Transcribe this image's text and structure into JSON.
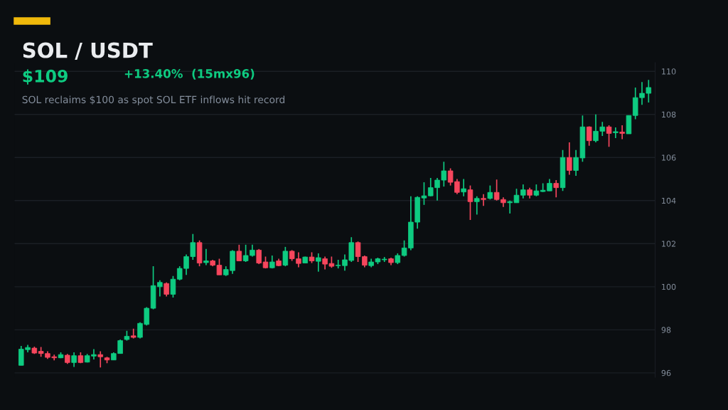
{
  "chart_data": {
    "type": "candlestick",
    "title": "SOL / USDT",
    "subtitle": "$109",
    "annotations": [
      "+13.40%  (15mx96)",
      "SOL reclaims $100 as spot SOL ETF inflows hit record"
    ],
    "categories": [
      null,
      null,
      null,
      null,
      null,
      null,
      null,
      null,
      null,
      null,
      null,
      null,
      null,
      null,
      null,
      null,
      null,
      null,
      null,
      null,
      null,
      null,
      null,
      null,
      null,
      null,
      null,
      null,
      null,
      null,
      null,
      null,
      null,
      null,
      null,
      null,
      null,
      null,
      null,
      null,
      null,
      null,
      null,
      null,
      null,
      null,
      null,
      null,
      null,
      null,
      null,
      null,
      null,
      null,
      null,
      null,
      null,
      null,
      null,
      null,
      null,
      null,
      null,
      null,
      null,
      null,
      null,
      null,
      null,
      null,
      null,
      null,
      null,
      null,
      null,
      null,
      null,
      null,
      null,
      null,
      null,
      null,
      null,
      null,
      null,
      null,
      null,
      null,
      null,
      null,
      null,
      null,
      null,
      null,
      null,
      null
    ],
    "ohlc": [
      [
        96.35,
        97.25,
        96.35,
        97.1
      ],
      [
        97.08,
        97.3,
        96.95,
        97.18
      ],
      [
        97.15,
        97.22,
        96.88,
        96.92
      ],
      [
        97.0,
        97.2,
        96.75,
        96.9
      ],
      [
        96.9,
        97.0,
        96.65,
        96.72
      ],
      [
        96.75,
        96.85,
        96.58,
        96.7
      ],
      [
        96.7,
        96.95,
        96.68,
        96.85
      ],
      [
        96.82,
        96.88,
        96.42,
        96.48
      ],
      [
        96.48,
        96.95,
        96.28,
        96.8
      ],
      [
        96.8,
        96.95,
        96.45,
        96.48
      ],
      [
        96.5,
        96.88,
        96.48,
        96.8
      ],
      [
        96.78,
        97.1,
        96.62,
        96.85
      ],
      [
        96.85,
        97.0,
        96.25,
        96.75
      ],
      [
        96.7,
        96.75,
        96.45,
        96.6
      ],
      [
        96.6,
        96.95,
        96.6,
        96.9
      ],
      [
        96.9,
        97.55,
        96.9,
        97.5
      ],
      [
        97.55,
        97.95,
        97.5,
        97.7
      ],
      [
        97.72,
        98.05,
        97.6,
        97.65
      ],
      [
        97.65,
        98.35,
        97.6,
        98.3
      ],
      [
        98.25,
        99.05,
        98.2,
        99.0
      ],
      [
        99.0,
        100.95,
        98.95,
        100.05
      ],
      [
        100.0,
        100.3,
        99.55,
        100.2
      ],
      [
        100.15,
        100.2,
        99.55,
        99.65
      ],
      [
        99.65,
        100.5,
        99.5,
        100.35
      ],
      [
        100.35,
        100.95,
        100.3,
        100.85
      ],
      [
        100.85,
        101.5,
        100.55,
        101.4
      ],
      [
        101.4,
        102.45,
        101.25,
        102.05
      ],
      [
        102.05,
        102.15,
        100.95,
        101.1
      ],
      [
        101.12,
        101.75,
        101.0,
        101.2
      ],
      [
        101.2,
        101.25,
        100.95,
        101.0
      ],
      [
        101.0,
        101.3,
        100.55,
        100.55
      ],
      [
        100.55,
        100.95,
        100.5,
        100.8
      ],
      [
        100.75,
        101.7,
        100.6,
        101.65
      ],
      [
        101.65,
        101.95,
        101.2,
        101.2
      ],
      [
        101.2,
        101.95,
        101.15,
        101.45
      ],
      [
        101.45,
        101.95,
        101.4,
        101.7
      ],
      [
        101.7,
        101.75,
        101.05,
        101.1
      ],
      [
        101.15,
        101.4,
        100.85,
        100.88
      ],
      [
        100.88,
        101.45,
        100.85,
        101.15
      ],
      [
        101.2,
        101.3,
        100.95,
        100.98
      ],
      [
        101.0,
        101.85,
        100.95,
        101.65
      ],
      [
        101.65,
        101.7,
        101.2,
        101.3
      ],
      [
        101.3,
        101.6,
        100.9,
        101.08
      ],
      [
        101.1,
        101.4,
        101.1,
        101.38
      ],
      [
        101.38,
        101.6,
        101.1,
        101.2
      ],
      [
        101.18,
        101.55,
        100.7,
        101.35
      ],
      [
        101.3,
        101.4,
        100.8,
        101.05
      ],
      [
        101.08,
        101.4,
        100.88,
        100.95
      ],
      [
        100.98,
        101.25,
        100.85,
        101.0
      ],
      [
        100.98,
        101.5,
        100.75,
        101.25
      ],
      [
        101.22,
        102.3,
        101.15,
        102.05
      ],
      [
        102.05,
        102.1,
        101.15,
        101.4
      ],
      [
        101.4,
        101.45,
        100.9,
        101.0
      ],
      [
        100.98,
        101.3,
        100.9,
        101.15
      ],
      [
        101.15,
        101.35,
        101.05,
        101.3
      ],
      [
        101.25,
        101.38,
        101.15,
        101.28
      ],
      [
        101.3,
        101.35,
        101.0,
        101.12
      ],
      [
        101.12,
        101.55,
        101.05,
        101.45
      ],
      [
        101.45,
        102.15,
        101.4,
        101.8
      ],
      [
        101.8,
        104.2,
        101.7,
        103.0
      ],
      [
        103.0,
        104.2,
        102.7,
        104.15
      ],
      [
        104.12,
        104.85,
        103.8,
        104.22
      ],
      [
        104.22,
        105.05,
        104.2,
        104.6
      ],
      [
        104.6,
        105.05,
        104.0,
        104.95
      ],
      [
        104.95,
        105.8,
        104.65,
        105.38
      ],
      [
        105.38,
        105.5,
        104.7,
        104.85
      ],
      [
        104.88,
        105.0,
        104.3,
        104.38
      ],
      [
        104.4,
        105.0,
        104.2,
        104.55
      ],
      [
        104.5,
        104.7,
        103.1,
        103.95
      ],
      [
        103.95,
        104.2,
        103.35,
        104.1
      ],
      [
        104.1,
        104.3,
        103.75,
        104.05
      ],
      [
        104.1,
        104.7,
        104.05,
        104.38
      ],
      [
        104.38,
        104.98,
        104.0,
        104.05
      ],
      [
        104.05,
        104.15,
        103.7,
        103.9
      ],
      [
        103.9,
        104.0,
        103.4,
        103.95
      ],
      [
        103.9,
        104.55,
        103.9,
        104.25
      ],
      [
        104.25,
        104.75,
        104.1,
        104.5
      ],
      [
        104.5,
        104.6,
        104.1,
        104.25
      ],
      [
        104.25,
        104.75,
        104.2,
        104.45
      ],
      [
        104.42,
        104.8,
        104.4,
        104.48
      ],
      [
        104.45,
        105.0,
        104.45,
        104.8
      ],
      [
        104.8,
        104.95,
        104.15,
        104.6
      ],
      [
        104.6,
        106.35,
        104.45,
        106.0
      ],
      [
        106.0,
        106.7,
        105.2,
        105.4
      ],
      [
        105.4,
        106.35,
        105.15,
        106.0
      ],
      [
        105.98,
        107.95,
        105.8,
        107.42
      ],
      [
        107.42,
        107.45,
        106.55,
        106.78
      ],
      [
        106.78,
        108.0,
        106.7,
        107.22
      ],
      [
        107.22,
        107.65,
        107.0,
        107.42
      ],
      [
        107.42,
        107.5,
        106.5,
        107.12
      ],
      [
        107.15,
        107.4,
        106.9,
        107.2
      ],
      [
        107.18,
        107.5,
        106.85,
        107.12
      ],
      [
        107.1,
        107.95,
        107.1,
        107.95
      ],
      [
        107.95,
        109.25,
        107.78,
        108.78
      ],
      [
        108.78,
        109.5,
        108.45,
        108.98
      ],
      [
        108.98,
        109.6,
        108.55,
        109.25
      ]
    ],
    "colors": [
      "#0ecb81",
      "#0ecb81",
      "#f6465d",
      "#f6465d",
      "#f6465d",
      "#f6465d",
      "#0ecb81",
      "#f6465d",
      "#0ecb81",
      "#f6465d",
      "#0ecb81",
      "#0ecb81",
      "#f6465d",
      "#f6465d",
      "#0ecb81",
      "#0ecb81",
      "#0ecb81",
      "#f6465d",
      "#0ecb81",
      "#0ecb81",
      "#0ecb81",
      "#0ecb81",
      "#f6465d",
      "#0ecb81",
      "#0ecb81",
      "#0ecb81",
      "#0ecb81",
      "#f6465d",
      "#0ecb81",
      "#f6465d",
      "#f6465d",
      "#0ecb81",
      "#0ecb81",
      "#f6465d",
      "#0ecb81",
      "#0ecb81",
      "#f6465d",
      "#f6465d",
      "#0ecb81",
      "#f6465d",
      "#0ecb81",
      "#f6465d",
      "#f6465d",
      "#0ecb81",
      "#f6465d",
      "#0ecb81",
      "#f6465d",
      "#f6465d",
      "#0ecb81",
      "#0ecb81",
      "#0ecb81",
      "#f6465d",
      "#f6465d",
      "#0ecb81",
      "#0ecb81",
      "#0ecb81",
      "#f6465d",
      "#0ecb81",
      "#0ecb81",
      "#0ecb81",
      "#0ecb81",
      "#0ecb81",
      "#0ecb81",
      "#0ecb81",
      "#0ecb81",
      "#f6465d",
      "#f6465d",
      "#0ecb81",
      "#f6465d",
      "#0ecb81",
      "#f6465d",
      "#0ecb81",
      "#f6465d",
      "#f6465d",
      "#0ecb81",
      "#0ecb81",
      "#0ecb81",
      "#f6465d",
      "#0ecb81",
      "#0ecb81",
      "#0ecb81",
      "#f6465d",
      "#0ecb81",
      "#f6465d",
      "#0ecb81",
      "#0ecb81",
      "#f6465d",
      "#0ecb81",
      "#0ecb81",
      "#f6465d",
      "#0ecb81",
      "#f6465d",
      "#0ecb81",
      "#0ecb81",
      "#0ecb81",
      "#0ecb81"
    ],
    "ylim": [
      95.8,
      110.4
    ],
    "yticks": [
      96,
      98,
      100,
      102,
      104,
      106,
      108,
      110
    ],
    "grid": "y",
    "tick_labels": "y"
  }
}
